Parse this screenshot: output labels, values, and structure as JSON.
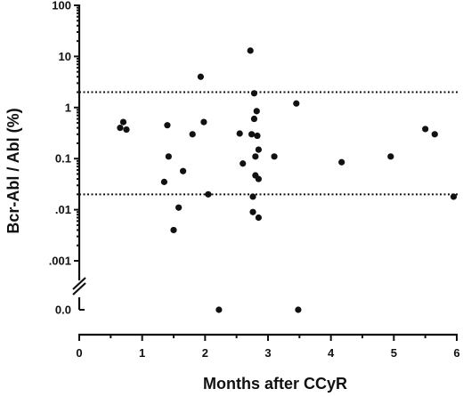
{
  "chart_data": {
    "type": "scatter",
    "title": "",
    "xlabel": "Months after CCyR",
    "ylabel": "Bcr-Abl / Abl (%)",
    "x_axis": {
      "min": 0,
      "max": 6,
      "ticks": [
        0,
        1,
        2,
        3,
        4,
        5,
        6
      ],
      "tick_labels": [
        "0",
        "1",
        "2",
        "3",
        "4",
        "5",
        "6"
      ]
    },
    "y_axis": {
      "scale": "log",
      "range": [
        0.001,
        100
      ],
      "ticks": [
        100,
        10,
        1,
        0.1,
        0.01,
        0.001
      ],
      "tick_labels": [
        "100",
        "10",
        "1",
        "0.1",
        ".01",
        ".001"
      ],
      "broken_axis": true,
      "zero_tick_label": "0.0"
    },
    "reference_lines": [
      {
        "axis": "y",
        "value": 2
      },
      {
        "axis": "y",
        "value": 0.02
      }
    ],
    "grid": false,
    "points": [
      {
        "x": 0.65,
        "y": 0.4
      },
      {
        "x": 0.7,
        "y": 0.52
      },
      {
        "x": 0.75,
        "y": 0.37
      },
      {
        "x": 1.35,
        "y": 0.035
      },
      {
        "x": 1.4,
        "y": 0.45
      },
      {
        "x": 1.42,
        "y": 0.11
      },
      {
        "x": 1.5,
        "y": 0.004
      },
      {
        "x": 1.58,
        "y": 0.011
      },
      {
        "x": 1.65,
        "y": 0.057
      },
      {
        "x": 1.8,
        "y": 0.3
      },
      {
        "x": 1.93,
        "y": 4
      },
      {
        "x": 1.98,
        "y": 0.52
      },
      {
        "x": 2.05,
        "y": 0.02
      },
      {
        "x": 2.55,
        "y": 0.31
      },
      {
        "x": 2.6,
        "y": 0.08
      },
      {
        "x": 2.72,
        "y": 13
      },
      {
        "x": 2.74,
        "y": 0.3
      },
      {
        "x": 2.76,
        "y": 0.018
      },
      {
        "x": 2.76,
        "y": 0.009
      },
      {
        "x": 2.78,
        "y": 1.9
      },
      {
        "x": 2.78,
        "y": 0.6
      },
      {
        "x": 2.8,
        "y": 0.11
      },
      {
        "x": 2.8,
        "y": 0.047
      },
      {
        "x": 2.82,
        "y": 0.85
      },
      {
        "x": 2.83,
        "y": 0.28
      },
      {
        "x": 2.85,
        "y": 0.15
      },
      {
        "x": 2.85,
        "y": 0.04
      },
      {
        "x": 2.85,
        "y": 0.007
      },
      {
        "x": 3.1,
        "y": 0.11
      },
      {
        "x": 3.45,
        "y": 1.2
      },
      {
        "x": 4.17,
        "y": 0.085
      },
      {
        "x": 4.95,
        "y": 0.11
      },
      {
        "x": 5.5,
        "y": 0.38
      },
      {
        "x": 5.65,
        "y": 0.3
      },
      {
        "x": 5.95,
        "y": 0.018
      }
    ],
    "zero_points": [
      {
        "x": 2.22,
        "y": 0
      },
      {
        "x": 3.48,
        "y": 0
      }
    ]
  }
}
